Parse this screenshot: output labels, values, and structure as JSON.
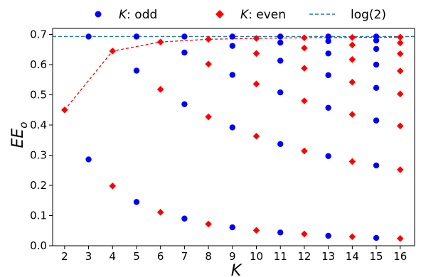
{
  "chart_data": {
    "type": "scatter",
    "title": "",
    "xlabel": "K",
    "ylabel": "EE",
    "ylabel_sub": "o",
    "xlim": [
      1.5,
      16.6
    ],
    "ylim": [
      0,
      0.72
    ],
    "xticks": [
      2,
      3,
      4,
      5,
      6,
      7,
      8,
      9,
      10,
      11,
      12,
      13,
      14,
      15,
      16
    ],
    "yticks": [
      0.0,
      0.1,
      0.2,
      0.3,
      0.4,
      0.5,
      0.6,
      0.7
    ],
    "grid": false,
    "legend_placement": "top, outside plot, horizontal",
    "reference_line": {
      "name": "log(2)",
      "value": 0.6931,
      "color": "#1f77b4",
      "style": "dashed"
    },
    "series": [
      {
        "name": "K: odd",
        "marker": "circle",
        "color": "#0000ff",
        "points": [
          [
            3,
            0.286
          ],
          [
            3,
            0.693
          ],
          [
            5,
            0.145
          ],
          [
            5,
            0.58
          ],
          [
            5,
            0.693
          ],
          [
            7,
            0.09
          ],
          [
            7,
            0.469
          ],
          [
            7,
            0.64
          ],
          [
            7,
            0.693
          ],
          [
            9,
            0.061
          ],
          [
            9,
            0.392
          ],
          [
            9,
            0.566
          ],
          [
            9,
            0.662
          ],
          [
            9,
            0.693
          ],
          [
            11,
            0.044
          ],
          [
            11,
            0.337
          ],
          [
            11,
            0.508
          ],
          [
            11,
            0.613
          ],
          [
            11,
            0.673
          ],
          [
            11,
            0.693
          ],
          [
            13,
            0.033
          ],
          [
            13,
            0.297
          ],
          [
            13,
            0.457
          ],
          [
            13,
            0.565
          ],
          [
            13,
            0.637
          ],
          [
            13,
            0.678
          ],
          [
            13,
            0.693
          ],
          [
            15,
            0.026
          ],
          [
            15,
            0.266
          ],
          [
            15,
            0.415
          ],
          [
            15,
            0.523
          ],
          [
            15,
            0.6
          ],
          [
            15,
            0.652
          ],
          [
            15,
            0.68
          ],
          [
            15,
            0.693
          ]
        ]
      },
      {
        "name": "K: even",
        "marker": "diamond",
        "color": "#ff0000",
        "points": [
          [
            2,
            0.45
          ],
          [
            4,
            0.198
          ],
          [
            4,
            0.645
          ],
          [
            6,
            0.111
          ],
          [
            6,
            0.518
          ],
          [
            6,
            0.675
          ],
          [
            8,
            0.072
          ],
          [
            8,
            0.427
          ],
          [
            8,
            0.602
          ],
          [
            8,
            0.684
          ],
          [
            10,
            0.051
          ],
          [
            10,
            0.363
          ],
          [
            10,
            0.536
          ],
          [
            10,
            0.637
          ],
          [
            10,
            0.687
          ],
          [
            12,
            0.039
          ],
          [
            12,
            0.314
          ],
          [
            12,
            0.48
          ],
          [
            12,
            0.588
          ],
          [
            12,
            0.655
          ],
          [
            12,
            0.689
          ],
          [
            14,
            0.03
          ],
          [
            14,
            0.279
          ],
          [
            14,
            0.435
          ],
          [
            14,
            0.542
          ],
          [
            14,
            0.617
          ],
          [
            14,
            0.665
          ],
          [
            14,
            0.69
          ],
          [
            16,
            0.024
          ],
          [
            16,
            0.252
          ],
          [
            16,
            0.397
          ],
          [
            16,
            0.503
          ],
          [
            16,
            0.579
          ],
          [
            16,
            0.636
          ],
          [
            16,
            0.672
          ],
          [
            16,
            0.691
          ]
        ]
      }
    ],
    "trend_line": {
      "series": "K: even",
      "color": "#ff0000",
      "style": "dashed",
      "points": [
        [
          2,
          0.45
        ],
        [
          4,
          0.645
        ],
        [
          6,
          0.675
        ],
        [
          8,
          0.684
        ],
        [
          10,
          0.687
        ],
        [
          12,
          0.689
        ],
        [
          14,
          0.69
        ],
        [
          16,
          0.691
        ]
      ]
    }
  },
  "legend": {
    "odd_prefix": "K",
    "odd_suffix": ": odd",
    "even_prefix": "K",
    "even_suffix": ": even",
    "ref_label": "log(2)"
  }
}
